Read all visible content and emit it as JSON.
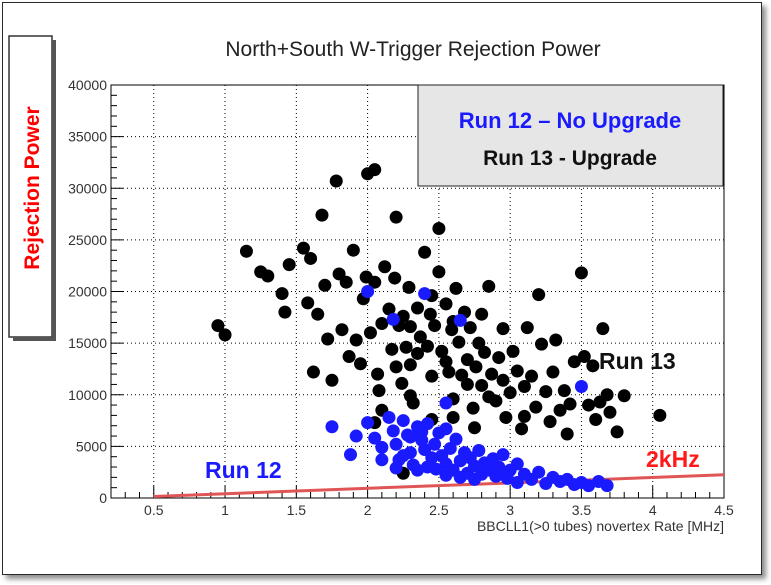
{
  "chart_data": {
    "type": "scatter",
    "title": "North+South W-Trigger Rejection Power",
    "xlabel": "BBCLL1(>0 tubes) novertex Rate [MHz]",
    "ylabel": "Rejection Power",
    "xlim": [
      0.2,
      4.5
    ],
    "ylim": [
      0,
      40000
    ],
    "x_ticks": [
      "0.5",
      "1",
      "1.5",
      "2",
      "2.5",
      "3",
      "3.5",
      "4",
      "4.5"
    ],
    "y_ticks": [
      "0",
      "5000",
      "10000",
      "15000",
      "20000",
      "25000",
      "30000",
      "35000",
      "40000"
    ],
    "grid": true,
    "legend": {
      "position": "top-right",
      "entries": [
        "Run 12 – No Upgrade",
        "Run 13 - Upgrade"
      ]
    },
    "annotations": {
      "run12": "Run 12",
      "run13": "Run 13",
      "threshold": "2kHz"
    },
    "colors": {
      "run12": "#1a1aff",
      "run13": "#000000",
      "threshold": "#e05555",
      "ylabel": "#ff0000"
    },
    "threshold_line": {
      "x": [
        0.5,
        4.5
      ],
      "y": [
        150,
        2250
      ]
    },
    "series": [
      {
        "name": "Run 12 – No Upgrade",
        "points": [
          [
            1.75,
            6900
          ],
          [
            1.88,
            4200
          ],
          [
            1.92,
            6000
          ],
          [
            2.0,
            7300
          ],
          [
            2.05,
            5800
          ],
          [
            2.1,
            4900
          ],
          [
            2.15,
            7800
          ],
          [
            2.18,
            6500
          ],
          [
            2.2,
            5200
          ],
          [
            2.22,
            3700
          ],
          [
            2.25,
            7500
          ],
          [
            2.28,
            6100
          ],
          [
            2.3,
            4400
          ],
          [
            2.32,
            3200
          ],
          [
            2.35,
            6900
          ],
          [
            2.38,
            5600
          ],
          [
            2.4,
            4700
          ],
          [
            2.42,
            7200
          ],
          [
            2.45,
            3900
          ],
          [
            2.47,
            5200
          ],
          [
            2.5,
            6300
          ],
          [
            2.52,
            4100
          ],
          [
            2.55,
            3300
          ],
          [
            2.58,
            4800
          ],
          [
            2.6,
            2700
          ],
          [
            2.62,
            5700
          ],
          [
            2.65,
            3600
          ],
          [
            2.68,
            4400
          ],
          [
            2.7,
            2400
          ],
          [
            2.72,
            3900
          ],
          [
            2.75,
            3100
          ],
          [
            2.78,
            4600
          ],
          [
            2.8,
            2300
          ],
          [
            2.82,
            3400
          ],
          [
            2.85,
            2700
          ],
          [
            2.88,
            3800
          ],
          [
            2.9,
            2100
          ],
          [
            2.92,
            3000
          ],
          [
            2.95,
            2500
          ],
          [
            2.98,
            1900
          ],
          [
            3.0,
            2700
          ],
          [
            3.05,
            1500
          ],
          [
            3.1,
            2300
          ],
          [
            3.15,
            1800
          ],
          [
            3.2,
            2500
          ],
          [
            3.25,
            1400
          ],
          [
            3.3,
            2000
          ],
          [
            3.35,
            1600
          ],
          [
            3.4,
            1800
          ],
          [
            3.45,
            1300
          ],
          [
            3.5,
            1500
          ],
          [
            3.55,
            1200
          ],
          [
            3.62,
            1600
          ],
          [
            3.68,
            1200
          ],
          [
            2.1,
            3700
          ],
          [
            2.3,
            5900
          ],
          [
            2.42,
            3000
          ],
          [
            2.55,
            2200
          ],
          [
            2.75,
            1800
          ],
          [
            2.95,
            4200
          ],
          [
            2.2,
            2900
          ],
          [
            2.35,
            2700
          ],
          [
            2.48,
            2800
          ],
          [
            2.65,
            2000
          ],
          [
            3.05,
            3300
          ],
          [
            2.25,
            4100
          ],
          [
            2.38,
            6400
          ],
          [
            2.55,
            6700
          ],
          [
            2.4,
            19800
          ],
          [
            2.65,
            17200
          ],
          [
            2.55,
            9200
          ],
          [
            2.0,
            20000
          ],
          [
            3.5,
            10800
          ],
          [
            2.18,
            17300
          ]
        ]
      },
      {
        "name": "Run 13 - Upgrade",
        "points": [
          [
            0.95,
            16700
          ],
          [
            1.0,
            15800
          ],
          [
            1.15,
            23900
          ],
          [
            1.25,
            21900
          ],
          [
            1.3,
            21500
          ],
          [
            1.4,
            19800
          ],
          [
            1.45,
            22600
          ],
          [
            1.42,
            18000
          ],
          [
            1.55,
            24200
          ],
          [
            1.58,
            18900
          ],
          [
            1.6,
            23200
          ],
          [
            1.62,
            12200
          ],
          [
            1.65,
            17800
          ],
          [
            1.68,
            27400
          ],
          [
            1.7,
            20600
          ],
          [
            1.72,
            15400
          ],
          [
            1.75,
            11400
          ],
          [
            1.78,
            30700
          ],
          [
            1.8,
            21700
          ],
          [
            1.82,
            16300
          ],
          [
            1.85,
            20900
          ],
          [
            1.87,
            13700
          ],
          [
            1.9,
            24000
          ],
          [
            1.92,
            15300
          ],
          [
            1.95,
            13000
          ],
          [
            1.97,
            19300
          ],
          [
            1.99,
            21400
          ],
          [
            2.0,
            31400
          ],
          [
            2.05,
            31800
          ],
          [
            2.02,
            16000
          ],
          [
            2.05,
            20900
          ],
          [
            2.07,
            12000
          ],
          [
            2.08,
            10400
          ],
          [
            2.1,
            16900
          ],
          [
            2.12,
            22400
          ],
          [
            2.15,
            18300
          ],
          [
            2.17,
            14400
          ],
          [
            2.19,
            21300
          ],
          [
            2.2,
            27200
          ],
          [
            2.22,
            16700
          ],
          [
            2.24,
            11100
          ],
          [
            2.25,
            17600
          ],
          [
            2.27,
            14600
          ],
          [
            2.29,
            20400
          ],
          [
            2.3,
            12900
          ],
          [
            2.32,
            9200
          ],
          [
            2.35,
            18400
          ],
          [
            2.37,
            15600
          ],
          [
            2.4,
            23800
          ],
          [
            2.42,
            14700
          ],
          [
            2.44,
            17800
          ],
          [
            2.45,
            11800
          ],
          [
            2.47,
            16700
          ],
          [
            2.5,
            26100
          ],
          [
            2.5,
            21900
          ],
          [
            2.52,
            14200
          ],
          [
            2.55,
            18800
          ],
          [
            2.57,
            12200
          ],
          [
            2.59,
            16300
          ],
          [
            2.6,
            9600
          ],
          [
            2.62,
            20300
          ],
          [
            2.64,
            15100
          ],
          [
            2.66,
            11900
          ],
          [
            2.68,
            18000
          ],
          [
            2.7,
            13400
          ],
          [
            2.72,
            16500
          ],
          [
            2.74,
            8700
          ],
          [
            2.76,
            12700
          ],
          [
            2.78,
            15000
          ],
          [
            2.8,
            10900
          ],
          [
            2.82,
            14100
          ],
          [
            2.85,
            20500
          ],
          [
            2.87,
            12000
          ],
          [
            2.9,
            9400
          ],
          [
            2.92,
            13600
          ],
          [
            2.95,
            11400
          ],
          [
            2.97,
            7800
          ],
          [
            3.0,
            10200
          ],
          [
            3.02,
            14200
          ],
          [
            3.05,
            12300
          ],
          [
            3.08,
            6700
          ],
          [
            3.1,
            10800
          ],
          [
            3.12,
            16500
          ],
          [
            3.15,
            11800
          ],
          [
            3.18,
            8800
          ],
          [
            3.2,
            19700
          ],
          [
            3.22,
            14900
          ],
          [
            3.25,
            10300
          ],
          [
            3.28,
            7400
          ],
          [
            3.3,
            12200
          ],
          [
            3.32,
            15300
          ],
          [
            3.35,
            8500
          ],
          [
            3.38,
            10400
          ],
          [
            3.4,
            6200
          ],
          [
            3.42,
            9100
          ],
          [
            3.45,
            13200
          ],
          [
            3.5,
            21800
          ],
          [
            3.52,
            13700
          ],
          [
            3.55,
            9000
          ],
          [
            3.58,
            12800
          ],
          [
            3.6,
            7600
          ],
          [
            3.63,
            9300
          ],
          [
            3.65,
            16400
          ],
          [
            3.68,
            10000
          ],
          [
            3.7,
            8300
          ],
          [
            3.75,
            6400
          ],
          [
            3.8,
            9900
          ],
          [
            4.05,
            8000
          ],
          [
            2.1,
            8500
          ],
          [
            2.2,
            12700
          ],
          [
            2.3,
            9900
          ],
          [
            2.45,
            7600
          ],
          [
            2.6,
            7800
          ],
          [
            2.75,
            6800
          ],
          [
            2.35,
            14000
          ],
          [
            2.6,
            17100
          ],
          [
            2.8,
            17800
          ],
          [
            2.3,
            16600
          ],
          [
            2.7,
            11000
          ],
          [
            2.95,
            16400
          ],
          [
            2.25,
            2400
          ],
          [
            2.05,
            7300
          ],
          [
            2.55,
            13200
          ],
          [
            2.85,
            9800
          ],
          [
            3.1,
            7900
          ],
          [
            2.45,
            19600
          ]
        ]
      }
    ]
  }
}
